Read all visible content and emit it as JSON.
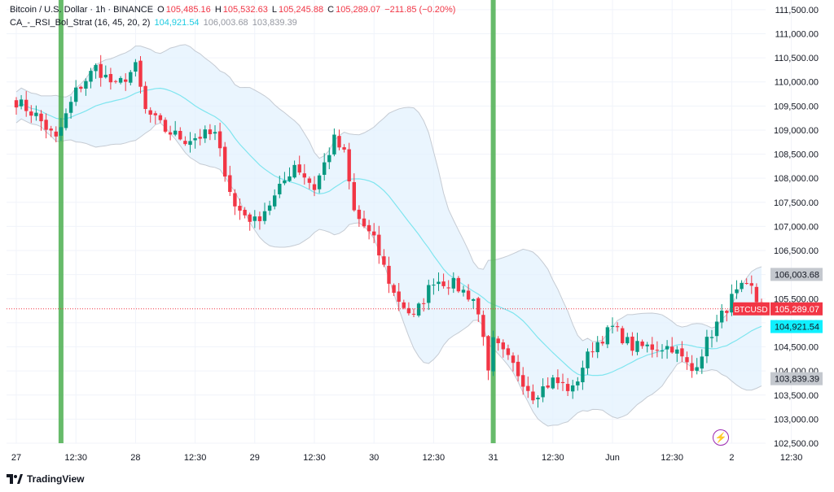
{
  "legend": {
    "symbol": "Bitcoin / U.S. Dollar · 1h · BINANCE",
    "o_label": "O",
    "o_value": "105,485.16",
    "h_label": "H",
    "h_value": "105,532.63",
    "l_label": "L",
    "l_value": "105,245.88",
    "c_label": "C",
    "c_value": "105,289.07",
    "change": "−211.85 (−0.20%)",
    "indicator_name": "CA_-_RSI_Bol_Strat (16, 45, 20, 2)",
    "ind_mid": "104,921.54",
    "ind_upper": "106,003.68",
    "ind_lower": "103,839.39"
  },
  "branding": {
    "name": "TradingView"
  },
  "icons": {
    "logo": "tradingview-logo-icon",
    "bolt": "lightning-bolt-icon"
  },
  "colors": {
    "up": "#089981",
    "down": "#f23645",
    "band_fill": "#e3f2fd",
    "band_line": "#c5cbd3",
    "mid_line": "#7fe5ef",
    "signal": "#4caf50"
  },
  "chart_data": {
    "type": "candlestick",
    "ylim": [
      102500,
      111700
    ],
    "y_ticks": [
      102500,
      103000,
      103500,
      104000,
      104500,
      105000,
      105500,
      106000,
      106500,
      107000,
      107500,
      108000,
      108500,
      109000,
      109500,
      110000,
      110500,
      111000,
      111500
    ],
    "y_tick_labels": [
      "102,500.00",
      "103,000.00",
      "103,500.00",
      "104,000.00",
      "104,500.00",
      "105,000.00",
      "105,500.00",
      "106,000.00",
      "106,500.00",
      "107,000.00",
      "107,500.00",
      "108,000.00",
      "108,500.00",
      "109,000.00",
      "109,500.00",
      "110,000.00",
      "110,500.00",
      "111,000.00",
      "111,500.00"
    ],
    "x_ticks": [
      {
        "bar": 0,
        "label": "27"
      },
      {
        "bar": 12,
        "label": "12:30"
      },
      {
        "bar": 24,
        "label": "28"
      },
      {
        "bar": 36,
        "label": "12:30"
      },
      {
        "bar": 48,
        "label": "29"
      },
      {
        "bar": 60,
        "label": "12:30"
      },
      {
        "bar": 72,
        "label": "30"
      },
      {
        "bar": 84,
        "label": "12:30"
      },
      {
        "bar": 96,
        "label": "31"
      },
      {
        "bar": 108,
        "label": "12:30"
      },
      {
        "bar": 120,
        "label": "Jun"
      },
      {
        "bar": 132,
        "label": "12:30"
      },
      {
        "bar": 144,
        "label": "2"
      },
      {
        "bar": 156,
        "label": "12:30"
      }
    ],
    "signals": [
      9,
      96
    ],
    "price_tags": [
      {
        "value": 106003.68,
        "label": "106,003.68",
        "kind": "upper"
      },
      {
        "value": 105289.07,
        "label": "105,289.07",
        "kind": "last",
        "symbol": "BTCUSD"
      },
      {
        "value": 104921.54,
        "label": "104,921.54",
        "kind": "mid"
      },
      {
        "value": 103839.39,
        "label": "103,839.39",
        "kind": "lower"
      }
    ],
    "last_price": 105289.07,
    "anchors": [
      [
        0,
        109600
      ],
      [
        4,
        109300
      ],
      [
        8,
        108800
      ],
      [
        12,
        109800
      ],
      [
        16,
        110300
      ],
      [
        20,
        109900
      ],
      [
        24,
        110300
      ],
      [
        26,
        109400
      ],
      [
        30,
        109000
      ],
      [
        34,
        108800
      ],
      [
        38,
        108900
      ],
      [
        40,
        108900
      ],
      [
        44,
        107400
      ],
      [
        48,
        107100
      ],
      [
        52,
        107600
      ],
      [
        56,
        108300
      ],
      [
        60,
        107800
      ],
      [
        64,
        108800
      ],
      [
        66,
        108500
      ],
      [
        68,
        107300
      ],
      [
        72,
        106700
      ],
      [
        76,
        105600
      ],
      [
        80,
        105100
      ],
      [
        84,
        105900
      ],
      [
        88,
        105800
      ],
      [
        92,
        105500
      ],
      [
        94,
        104800
      ],
      [
        95,
        103900
      ],
      [
        96,
        104600
      ],
      [
        100,
        104100
      ],
      [
        104,
        103500
      ],
      [
        108,
        103800
      ],
      [
        112,
        103600
      ],
      [
        114,
        104100
      ],
      [
        116,
        104500
      ],
      [
        120,
        104900
      ],
      [
        124,
        104500
      ],
      [
        128,
        104500
      ],
      [
        132,
        104500
      ],
      [
        136,
        104000
      ],
      [
        140,
        104800
      ],
      [
        144,
        105500
      ],
      [
        146,
        105700
      ],
      [
        148,
        105700
      ],
      [
        150,
        105200
      ]
    ],
    "candles_generated_from_anchors": true
  }
}
